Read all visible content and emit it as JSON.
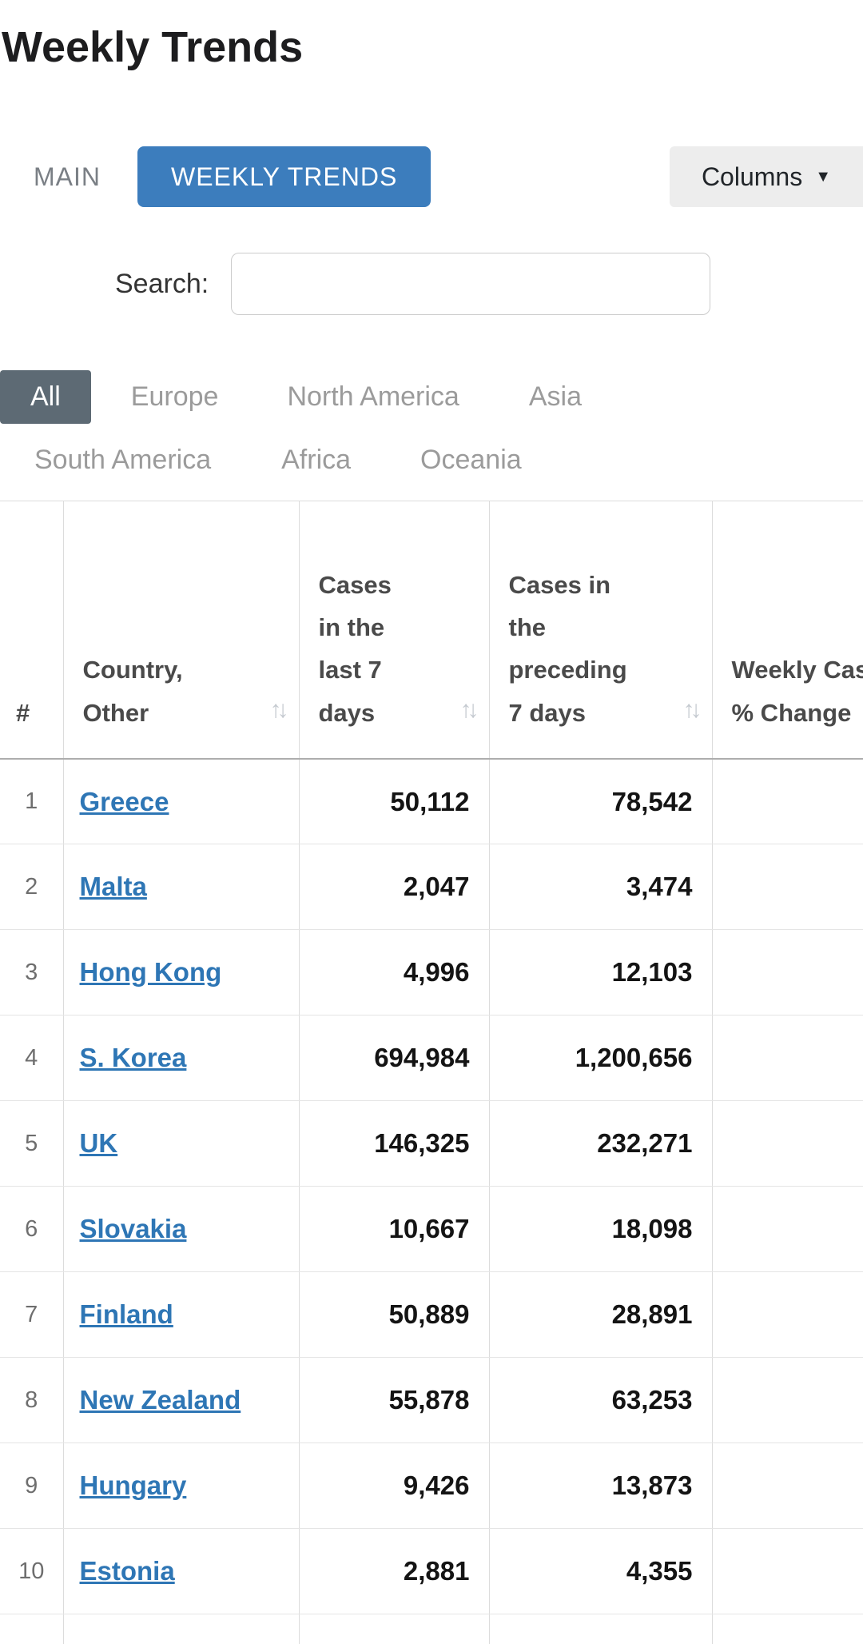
{
  "page": {
    "title": "Weekly Trends"
  },
  "tabs": {
    "main": "MAIN",
    "weekly": "WEEKLY TRENDS"
  },
  "columns_button": {
    "label": "Columns"
  },
  "search": {
    "label": "Search:",
    "value": ""
  },
  "region_tabs": {
    "items": [
      {
        "label": "All",
        "active": true
      },
      {
        "label": "Europe",
        "active": false
      },
      {
        "label": "North America",
        "active": false
      },
      {
        "label": "Asia",
        "active": false
      },
      {
        "label": "South America",
        "active": false
      },
      {
        "label": "Africa",
        "active": false
      },
      {
        "label": "Oceania",
        "active": false
      }
    ]
  },
  "icons": {
    "sort": "↑↓",
    "caret_down": "▼"
  },
  "table": {
    "headers": {
      "rank": "#",
      "country": {
        "lines": [
          "Country,",
          "Other"
        ]
      },
      "cases_last": {
        "lines": [
          "Cases",
          "in the",
          "last 7",
          "days"
        ]
      },
      "cases_prev": {
        "lines": [
          "Cases in",
          "the",
          "preceding",
          "7 days"
        ]
      },
      "change": {
        "lines": [
          "Weekly Case",
          "% Change"
        ]
      }
    },
    "rows": [
      {
        "rank": "1",
        "country": "Greece",
        "cases_last": "50,112",
        "cases_prev": "78,542",
        "change": ""
      },
      {
        "rank": "2",
        "country": "Malta",
        "cases_last": "2,047",
        "cases_prev": "3,474",
        "change": ""
      },
      {
        "rank": "3",
        "country": "Hong Kong",
        "cases_last": "4,996",
        "cases_prev": "12,103",
        "change": ""
      },
      {
        "rank": "4",
        "country": "S. Korea",
        "cases_last": "694,984",
        "cases_prev": "1,200,656",
        "change": ""
      },
      {
        "rank": "5",
        "country": "UK",
        "cases_last": "146,325",
        "cases_prev": "232,271",
        "change": ""
      },
      {
        "rank": "6",
        "country": "Slovakia",
        "cases_last": "10,667",
        "cases_prev": "18,098",
        "change": ""
      },
      {
        "rank": "7",
        "country": "Finland",
        "cases_last": "50,889",
        "cases_prev": "28,891",
        "change": ""
      },
      {
        "rank": "8",
        "country": "New Zealand",
        "cases_last": "55,878",
        "cases_prev": "63,253",
        "change": ""
      },
      {
        "rank": "9",
        "country": "Hungary",
        "cases_last": "9,426",
        "cases_prev": "13,873",
        "change": ""
      },
      {
        "rank": "10",
        "country": "Estonia",
        "cases_last": "2,881",
        "cases_prev": "4,355",
        "change": ""
      }
    ]
  },
  "colors": {
    "accent_blue": "#3c7dbd",
    "link_blue": "#2e76b5",
    "active_region_tab": "#5d6a74",
    "columns_button_bg": "#ededed"
  }
}
